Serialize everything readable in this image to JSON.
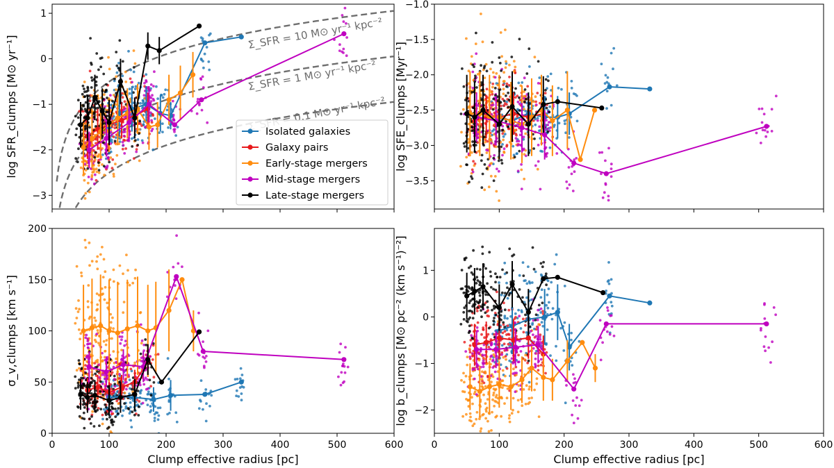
{
  "chart_data": [
    {
      "type": "scatter",
      "id": "sfr",
      "ylabel": "log SFR_clumps [M⊙ yr⁻¹]",
      "xlabel": "",
      "xlim": [
        0,
        600
      ],
      "ylim": [
        -3.3,
        1.2
      ],
      "xticks": [
        0,
        100,
        200,
        300,
        400,
        500,
        600
      ],
      "yticks": [
        -3,
        -2,
        -1,
        0,
        1
      ],
      "ytick_labels": [
        "−3",
        "−2",
        "−1",
        "0",
        "1"
      ],
      "show_x_ticklabels": false,
      "reference_lines": [
        {
          "label": "Σ_SFR = 10 M⊙ yr⁻¹ kpc⁻²",
          "log_sigma": 1
        },
        {
          "label": "Σ_SFR = 1 M⊙ yr⁻¹ kpc⁻²",
          "log_sigma": 0
        },
        {
          "label": "Σ_SFR = 0.1 M⊙ yr⁻¹ kpc⁻²",
          "log_sigma": -1
        }
      ],
      "series": [
        {
          "name": "Isolated galaxies",
          "color": "#1f77b4",
          "x": [
            100,
            118,
            140,
            165,
            190,
            208,
            268,
            332
          ],
          "y": [
            -1.5,
            -1.2,
            -1.1,
            -1.0,
            -1.2,
            -1.25,
            0.35,
            0.48
          ],
          "err": [
            0.6,
            0.5,
            0.5,
            0.4,
            0.4,
            0.3,
            0.0,
            0.0
          ]
        },
        {
          "name": "Galaxy pairs",
          "color": "#e8191b",
          "x": [
            62,
            80,
            100,
            122,
            145,
            168
          ],
          "y": [
            -1.7,
            -1.55,
            -1.45,
            -1.35,
            -1.25,
            -1.1
          ],
          "err": [
            0.5,
            0.45,
            0.45,
            0.4,
            0.4,
            0.35
          ]
        },
        {
          "name": "Early-stage mergers",
          "color": "#ff8c0e",
          "x": [
            55,
            70,
            85,
            100,
            115,
            132,
            150,
            170,
            185,
            205,
            225,
            247
          ],
          "y": [
            -1.95,
            -1.75,
            -1.6,
            -1.45,
            -1.3,
            -1.2,
            -1.1,
            -1.5,
            -1.45,
            -0.9,
            -0.75,
            -0.35
          ],
          "err": [
            0.6,
            0.65,
            0.6,
            0.6,
            0.6,
            0.55,
            0.55,
            0.5,
            0.5,
            0.55,
            0.6,
            0.5
          ]
        },
        {
          "name": "Mid-stage mergers",
          "color": "#bf00bf",
          "x": [
            65,
            95,
            135,
            170,
            215,
            262,
            512
          ],
          "y": [
            -2.0,
            -1.75,
            -1.4,
            -1.0,
            -1.45,
            -0.9,
            0.55
          ],
          "err": [
            0.4,
            0.4,
            0.4,
            0.4,
            0.0,
            0.0,
            0.0
          ]
        },
        {
          "name": "Late-stage mergers",
          "color": "#000000",
          "x": [
            50,
            62,
            75,
            88,
            100,
            120,
            145,
            168,
            188,
            258
          ],
          "y": [
            -1.45,
            -1.3,
            -0.85,
            -1.15,
            -1.4,
            -0.5,
            -1.3,
            0.28,
            0.18,
            0.72
          ],
          "err": [
            0.5,
            0.5,
            0.5,
            0.5,
            0.5,
            0.5,
            0.45,
            0.3,
            0.3,
            0.0
          ]
        }
      ]
    },
    {
      "type": "scatter",
      "id": "sfe",
      "ylabel": "log SFE_clumps [Myr⁻¹]",
      "xlabel": "",
      "xlim": [
        0,
        600
      ],
      "ylim": [
        -3.9,
        -1.0
      ],
      "xticks": [
        0,
        100,
        200,
        300,
        400,
        500,
        600
      ],
      "yticks": [
        -3.5,
        -3.0,
        -2.5,
        -2.0,
        -1.5,
        -1.0
      ],
      "ytick_labels": [
        "−3.5",
        "−3.0",
        "−2.5",
        "−2.0",
        "−1.5",
        "−1.0"
      ],
      "show_x_ticklabels": false,
      "series": [
        {
          "name": "Isolated galaxies",
          "color": "#1f77b4",
          "x": [
            100,
            120,
            145,
            170,
            190,
            208,
            270,
            332
          ],
          "y": [
            -2.6,
            -2.65,
            -2.55,
            -2.6,
            -2.6,
            -2.55,
            -2.17,
            -2.2
          ],
          "err": [
            0.3,
            0.3,
            0.3,
            0.3,
            0.3,
            0.3,
            0.0,
            0.0
          ]
        },
        {
          "name": "Galaxy pairs",
          "color": "#e8191b",
          "x": [
            62,
            80,
            100,
            122,
            145,
            168
          ],
          "y": [
            -2.65,
            -2.6,
            -2.6,
            -2.55,
            -2.6,
            -2.55
          ],
          "err": [
            0.3,
            0.3,
            0.3,
            0.3,
            0.3,
            0.3
          ]
        },
        {
          "name": "Early-stage mergers",
          "color": "#ff8c0e",
          "x": [
            55,
            70,
            85,
            100,
            118,
            135,
            150,
            165,
            182,
            205,
            225,
            247
          ],
          "y": [
            -2.55,
            -2.55,
            -2.6,
            -2.6,
            -2.65,
            -2.7,
            -2.6,
            -2.5,
            -2.65,
            -2.5,
            -3.2,
            -2.5
          ],
          "err": [
            0.6,
            0.6,
            0.6,
            0.6,
            0.55,
            0.55,
            0.55,
            0.5,
            0.5,
            0.55,
            0.0,
            0.0
          ]
        },
        {
          "name": "Mid-stage mergers",
          "color": "#bf00bf",
          "x": [
            65,
            95,
            135,
            170,
            215,
            265,
            512
          ],
          "y": [
            -2.6,
            -2.65,
            -2.75,
            -2.85,
            -3.25,
            -3.4,
            -2.73
          ],
          "err": [
            0.35,
            0.35,
            0.35,
            0.35,
            0.0,
            0.0,
            0.0
          ]
        },
        {
          "name": "Late-stage mergers",
          "color": "#000000",
          "x": [
            50,
            62,
            75,
            100,
            120,
            145,
            168,
            190,
            258
          ],
          "y": [
            -2.55,
            -2.6,
            -2.5,
            -2.7,
            -2.45,
            -2.7,
            -2.42,
            -2.38,
            -2.47
          ],
          "err": [
            0.55,
            0.5,
            0.5,
            0.5,
            0.5,
            0.45,
            0.4,
            0.0,
            0.0
          ]
        }
      ]
    },
    {
      "type": "scatter",
      "id": "sigma",
      "ylabel": "σ_v,clumps [km s⁻¹]",
      "xlabel": "Clump effective radius [pc]",
      "xlim": [
        0,
        600
      ],
      "ylim": [
        0,
        200
      ],
      "xticks": [
        0,
        100,
        200,
        300,
        400,
        500,
        600
      ],
      "yticks": [
        0,
        50,
        100,
        150,
        200
      ],
      "ytick_labels": [
        "0",
        "50",
        "100",
        "150",
        "200"
      ],
      "show_x_ticklabels": true,
      "series": [
        {
          "name": "Isolated galaxies",
          "color": "#1f77b4",
          "x": [
            100,
            120,
            145,
            178,
            208,
            268,
            332
          ],
          "y": [
            35,
            36,
            35,
            33,
            37,
            38,
            50
          ],
          "err": [
            12,
            12,
            12,
            12,
            15,
            0,
            0
          ]
        },
        {
          "name": "Galaxy pairs",
          "color": "#e8191b",
          "x": [
            62,
            80,
            100,
            122,
            145,
            168
          ],
          "y": [
            42,
            45,
            40,
            45,
            50,
            70
          ],
          "err": [
            12,
            12,
            12,
            12,
            12,
            15
          ]
        },
        {
          "name": "Early-stage mergers",
          "color": "#ff8c0e",
          "x": [
            55,
            70,
            85,
            100,
            115,
            132,
            150,
            168,
            182,
            205,
            228,
            248
          ],
          "y": [
            100,
            103,
            105,
            100,
            98,
            102,
            105,
            100,
            103,
            120,
            150,
            100
          ],
          "err": [
            45,
            48,
            50,
            50,
            50,
            48,
            48,
            45,
            45,
            40,
            0,
            20
          ]
        },
        {
          "name": "Mid-stage mergers",
          "color": "#bf00bf",
          "x": [
            65,
            95,
            125,
            160,
            218,
            265,
            512
          ],
          "y": [
            65,
            60,
            67,
            65,
            153,
            80,
            72
          ],
          "err": [
            15,
            15,
            15,
            15,
            0,
            0,
            0
          ]
        },
        {
          "name": "Late-stage mergers",
          "color": "#000000",
          "x": [
            50,
            62,
            75,
            100,
            120,
            145,
            168,
            192,
            258
          ],
          "y": [
            38,
            35,
            37,
            32,
            35,
            38,
            72,
            50,
            99
          ],
          "err": [
            15,
            15,
            15,
            15,
            15,
            15,
            15,
            0,
            0
          ]
        }
      ]
    },
    {
      "type": "scatter",
      "id": "b",
      "ylabel": "log b_clumps [M⊙ pc⁻² (km s⁻¹)⁻²]",
      "xlabel": "Clump effective radius [pc]",
      "xlim": [
        0,
        600
      ],
      "ylim": [
        -2.5,
        1.9
      ],
      "xticks": [
        0,
        100,
        200,
        300,
        400,
        500,
        600
      ],
      "yticks": [
        -2,
        -1,
        0,
        1
      ],
      "ytick_labels": [
        "−2",
        "−1",
        "0",
        "1"
      ],
      "show_x_ticklabels": true,
      "series": [
        {
          "name": "Isolated galaxies",
          "color": "#1f77b4",
          "x": [
            100,
            120,
            145,
            170,
            190,
            208,
            270,
            332
          ],
          "y": [
            -0.3,
            -0.2,
            -0.05,
            0.0,
            0.1,
            -0.65,
            0.45,
            0.3
          ],
          "err": [
            0.6,
            0.6,
            0.6,
            0.6,
            0.6,
            0.5,
            0.0,
            0.0
          ]
        },
        {
          "name": "Galaxy pairs",
          "color": "#e8191b",
          "x": [
            62,
            80,
            100,
            122,
            145,
            168
          ],
          "y": [
            -0.6,
            -0.55,
            -0.45,
            -0.5,
            -0.45,
            -0.8
          ],
          "err": [
            0.45,
            0.45,
            0.45,
            0.45,
            0.45,
            0.4
          ]
        },
        {
          "name": "Early-stage mergers",
          "color": "#ff8c0e",
          "x": [
            55,
            70,
            85,
            100,
            118,
            135,
            150,
            168,
            182,
            205,
            228,
            248
          ],
          "y": [
            -1.5,
            -1.6,
            -1.5,
            -1.45,
            -1.5,
            -1.35,
            -1.1,
            -1.3,
            -1.35,
            -0.95,
            -0.55,
            -1.1
          ],
          "err": [
            0.5,
            0.55,
            0.55,
            0.5,
            0.5,
            0.5,
            0.5,
            0.5,
            0.45,
            0.45,
            0.0,
            0.3
          ]
        },
        {
          "name": "Mid-stage mergers",
          "color": "#bf00bf",
          "x": [
            65,
            95,
            125,
            160,
            215,
            265,
            512
          ],
          "y": [
            -0.7,
            -0.7,
            -0.65,
            -0.6,
            -1.55,
            -0.15,
            -0.15
          ],
          "err": [
            0.4,
            0.4,
            0.4,
            0.4,
            0.0,
            0.0,
            0.0
          ]
        },
        {
          "name": "Late-stage mergers",
          "color": "#000000",
          "x": [
            50,
            62,
            75,
            100,
            120,
            145,
            168,
            190,
            260
          ],
          "y": [
            0.45,
            0.55,
            0.65,
            0.2,
            0.7,
            0.1,
            0.82,
            0.85,
            0.52
          ],
          "err": [
            0.5,
            0.5,
            0.5,
            0.5,
            0.5,
            0.5,
            0.0,
            0.0,
            0.0
          ]
        }
      ]
    }
  ],
  "legend": {
    "entries": [
      {
        "label": "Isolated galaxies",
        "color": "#1f77b4"
      },
      {
        "label": "Galaxy pairs",
        "color": "#e8191b"
      },
      {
        "label": "Early-stage mergers",
        "color": "#ff8c0e"
      },
      {
        "label": "Mid-stage mergers",
        "color": "#bf00bf"
      },
      {
        "label": "Late-stage mergers",
        "color": "#000000"
      }
    ]
  }
}
